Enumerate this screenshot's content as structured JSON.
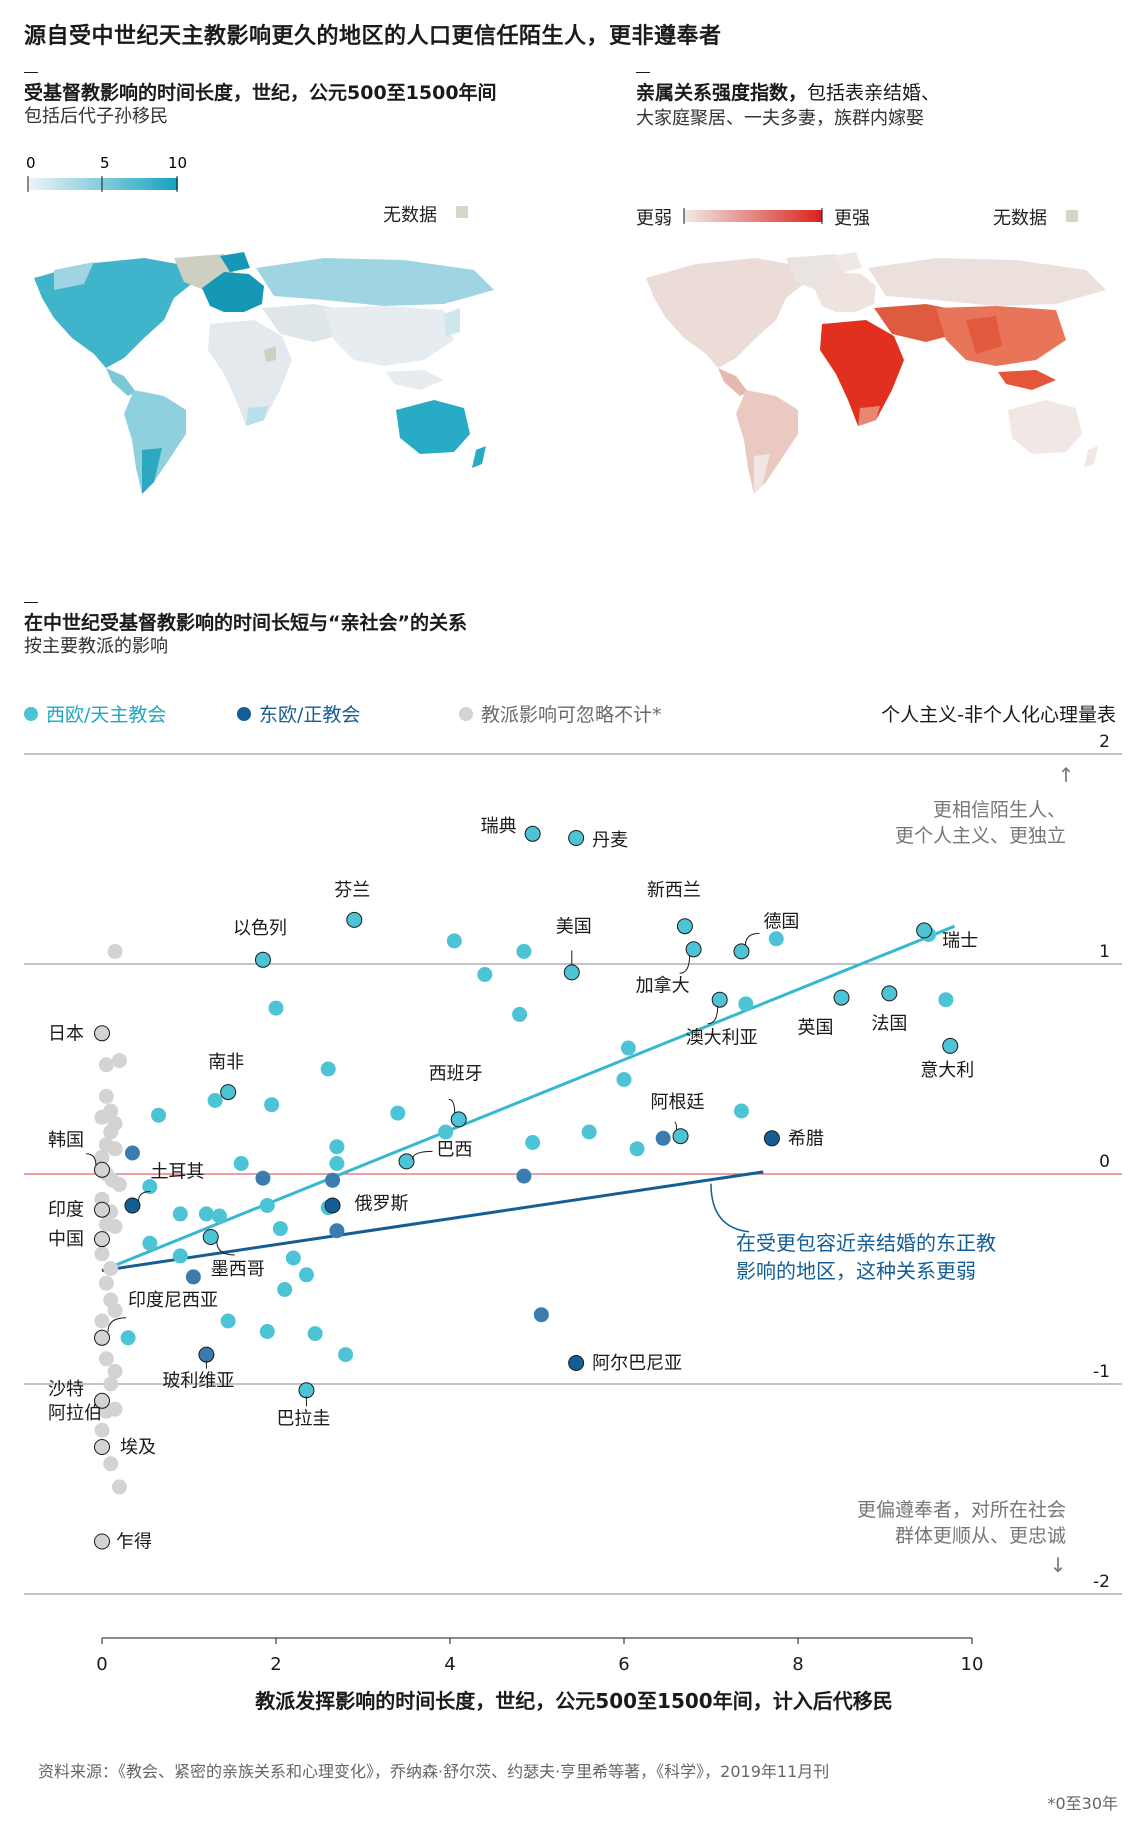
{
  "title": "源自受中世纪天主教影响更久的地区的人口更信任陌生人，更非遵奉者",
  "map_left": {
    "heading": "受基督教影响的时间长度，世纪，公元500至1500年间",
    "subheading": "包括后代子孙移民",
    "scale_ticks": [
      "0",
      "5",
      "10"
    ],
    "no_data": "无数据",
    "colors": {
      "low": "#e8f1f5",
      "high": "#1aa3bf",
      "no_data": "#d6d6c8"
    }
  },
  "map_right": {
    "heading_bold": "亲属关系强度指数，",
    "heading_rest": "包括表亲结婚、",
    "heading_line2": "大家庭聚居、一夫多妻，族群内嫁娶",
    "weaker": "更弱",
    "stronger": "更强",
    "no_data": "无数据",
    "colors": {
      "low": "#efe7e4",
      "high": "#d9231b",
      "no_data": "#d6d6c8"
    }
  },
  "scatter_section": {
    "heading": "在中世纪受基督教影响的时间长短与“亲社会”的关系",
    "subheading": "按主要教派的影响"
  },
  "legend": {
    "western": "西欧/天主教会",
    "eastern": "东欧/正教会",
    "negligible": "教派影响可忽略不计*",
    "y_axis_title": "个人主义-非个人化心理量表"
  },
  "annotations": {
    "top_arrow": "↑",
    "top_line1": "更相信陌生人、",
    "top_line2": "更个人主义、更独立",
    "bottom_line1": "更偏遵奉者，对所在社会",
    "bottom_line2": "群体更顺从、更忠诚",
    "bottom_arrow": "↓",
    "orthodox_line1": "在受更包容近亲结婚的东正教",
    "orthodox_line2": "影响的地区，这种关系更弱"
  },
  "footer": {
    "source": "资料来源：《教会、紧密的亲族关系和心理变化》，乔纳森·舒尔茨、约瑟夫·亨里希等著，《科学》，2019年11月刊",
    "note": "*0至30年"
  },
  "chart_data": {
    "type": "scatter",
    "xlabel": "教派发挥影响的时间长度，世纪，公元500至1500年间，计入后代移民",
    "ylabel": "个人主义-非个人化心理量表",
    "xlim": [
      0,
      10
    ],
    "ylim": [
      -2,
      2
    ],
    "x_ticks": [
      "0",
      "2",
      "4",
      "6",
      "8",
      "10"
    ],
    "y_ticks": [
      "2",
      "1",
      "0",
      "-1",
      "-2"
    ],
    "colors": {
      "western": "#4cc4d6",
      "eastern": "#3a7bb0",
      "eastern_dark": "#155e94",
      "negligible": "#d3d3d3",
      "zero_line": "#e0666a",
      "grid": "#8a8a8a"
    },
    "trend_lines": [
      {
        "name": "西欧/天主教会",
        "x": [
          0,
          9.8
        ],
        "y": [
          -0.46,
          1.18
        ]
      },
      {
        "name": "东欧/正教会",
        "x": [
          0,
          7.6
        ],
        "y": [
          -0.46,
          0.01
        ]
      }
    ],
    "labeled_points": [
      {
        "label": "瑞典",
        "x": 4.95,
        "y": 1.62,
        "group": "western"
      },
      {
        "label": "丹麦",
        "x": 5.45,
        "y": 1.6,
        "group": "western"
      },
      {
        "label": "芬兰",
        "x": 2.9,
        "y": 1.21,
        "group": "western"
      },
      {
        "label": "新西兰",
        "x": 6.7,
        "y": 1.18,
        "group": "western"
      },
      {
        "label": "德国",
        "x": 7.35,
        "y": 1.06,
        "group": "western"
      },
      {
        "label": "瑞士",
        "x": 9.45,
        "y": 1.16,
        "group": "western"
      },
      {
        "label": "以色列",
        "x": 1.85,
        "y": 1.02,
        "group": "western"
      },
      {
        "label": "美国",
        "x": 5.4,
        "y": 0.96,
        "group": "western"
      },
      {
        "label": "加拿大",
        "x": 6.8,
        "y": 1.07,
        "group": "western"
      },
      {
        "label": "澳大利亚",
        "x": 7.1,
        "y": 0.83,
        "group": "western"
      },
      {
        "label": "英国",
        "x": 8.5,
        "y": 0.84,
        "group": "western"
      },
      {
        "label": "法国",
        "x": 9.05,
        "y": 0.86,
        "group": "western"
      },
      {
        "label": "意大利",
        "x": 9.75,
        "y": 0.61,
        "group": "western"
      },
      {
        "label": "南非",
        "x": 1.45,
        "y": 0.39,
        "group": "western"
      },
      {
        "label": "西班牙",
        "x": 4.1,
        "y": 0.26,
        "group": "western"
      },
      {
        "label": "阿根廷",
        "x": 6.65,
        "y": 0.18,
        "group": "western"
      },
      {
        "label": "希腊",
        "x": 7.7,
        "y": 0.17,
        "group": "eastern_dark"
      },
      {
        "label": "巴西",
        "x": 3.5,
        "y": 0.06,
        "group": "western"
      },
      {
        "label": "土耳其",
        "x": 0.35,
        "y": -0.15,
        "group": "eastern_dark"
      },
      {
        "label": "俄罗斯",
        "x": 2.65,
        "y": -0.15,
        "group": "eastern_dark"
      },
      {
        "label": "墨西哥",
        "x": 1.25,
        "y": -0.3,
        "group": "western"
      },
      {
        "label": "玻利维亚",
        "x": 1.2,
        "y": -0.86,
        "group": "eastern"
      },
      {
        "label": "巴拉圭",
        "x": 2.35,
        "y": -1.03,
        "group": "western"
      },
      {
        "label": "阿尔巴尼亚",
        "x": 5.45,
        "y": -0.9,
        "group": "eastern_dark"
      },
      {
        "label": "日本",
        "x": 0,
        "y": 0.67,
        "group": "negligible"
      },
      {
        "label": "韩国",
        "x": 0,
        "y": 0.02,
        "group": "negligible"
      },
      {
        "label": "印度",
        "x": 0,
        "y": -0.17,
        "group": "negligible"
      },
      {
        "label": "中国",
        "x": 0,
        "y": -0.31,
        "group": "negligible"
      },
      {
        "label": "印度尼西亚",
        "x": 0,
        "y": -0.78,
        "group": "negligible"
      },
      {
        "label": "沙特阿拉伯",
        "x": 0,
        "y": -1.08,
        "group": "negligible"
      },
      {
        "label": "埃及",
        "x": 0,
        "y": -1.3,
        "group": "negligible"
      },
      {
        "label": "乍得",
        "x": 0,
        "y": -1.75,
        "group": "negligible"
      }
    ],
    "western_points": [
      [
        4.05,
        1.11
      ],
      [
        4.85,
        1.06
      ],
      [
        4.4,
        0.95
      ],
      [
        4.8,
        0.76
      ],
      [
        7.75,
        1.12
      ],
      [
        9.5,
        1.14
      ],
      [
        6.05,
        0.6
      ],
      [
        7.4,
        0.81
      ],
      [
        9.7,
        0.83
      ],
      [
        2.0,
        0.79
      ],
      [
        2.6,
        0.5
      ],
      [
        6.0,
        0.45
      ],
      [
        7.35,
        0.3
      ],
      [
        1.3,
        0.35
      ],
      [
        1.95,
        0.33
      ],
      [
        0.65,
        0.28
      ],
      [
        3.4,
        0.29
      ],
      [
        3.95,
        0.2
      ],
      [
        5.6,
        0.2
      ],
      [
        4.95,
        0.15
      ],
      [
        6.15,
        0.12
      ],
      [
        2.7,
        0.13
      ],
      [
        2.7,
        0.05
      ],
      [
        1.6,
        0.05
      ],
      [
        0.55,
        -0.06
      ],
      [
        1.9,
        -0.15
      ],
      [
        2.6,
        -0.16
      ],
      [
        1.2,
        -0.19
      ],
      [
        0.9,
        -0.19
      ],
      [
        1.35,
        -0.2
      ],
      [
        0.55,
        -0.33
      ],
      [
        2.05,
        -0.26
      ],
      [
        0.9,
        -0.39
      ],
      [
        2.2,
        -0.4
      ],
      [
        2.35,
        -0.48
      ],
      [
        2.1,
        -0.55
      ],
      [
        1.45,
        -0.7
      ],
      [
        1.9,
        -0.75
      ],
      [
        2.45,
        -0.76
      ],
      [
        0.3,
        -0.78
      ],
      [
        2.8,
        -0.86
      ]
    ],
    "eastern_points": [
      [
        0.35,
        0.1
      ],
      [
        1.85,
        -0.02
      ],
      [
        2.65,
        -0.03
      ],
      [
        4.85,
        -0.01
      ],
      [
        6.45,
        0.17
      ],
      [
        2.7,
        -0.27
      ],
      [
        1.05,
        -0.49
      ],
      [
        5.05,
        -0.67
      ]
    ],
    "negligible_points": [
      [
        0.15,
        1.06
      ],
      [
        0.05,
        0.52
      ],
      [
        0.2,
        0.54
      ],
      [
        0.05,
        0.37
      ],
      [
        0.1,
        0.3
      ],
      [
        0.15,
        0.24
      ],
      [
        0.0,
        0.27
      ],
      [
        0.05,
        0.14
      ],
      [
        0.1,
        0.2
      ],
      [
        0.15,
        0.12
      ],
      [
        0.0,
        0.08
      ],
      [
        0.05,
        0.0
      ],
      [
        0.12,
        -0.03
      ],
      [
        0.2,
        -0.05
      ],
      [
        0.0,
        -0.12
      ],
      [
        0.1,
        -0.18
      ],
      [
        0.05,
        -0.24
      ],
      [
        0.15,
        -0.25
      ],
      [
        0.0,
        -0.38
      ],
      [
        0.1,
        -0.45
      ],
      [
        0.05,
        -0.52
      ],
      [
        0.1,
        -0.6
      ],
      [
        0.15,
        -0.65
      ],
      [
        0.0,
        -0.7
      ],
      [
        0.05,
        -0.88
      ],
      [
        0.15,
        -0.94
      ],
      [
        0.1,
        -1.0
      ],
      [
        0.05,
        -1.13
      ],
      [
        0.15,
        -1.12
      ],
      [
        0.0,
        -1.22
      ],
      [
        0.1,
        -1.38
      ],
      [
        0.2,
        -1.49
      ]
    ]
  }
}
